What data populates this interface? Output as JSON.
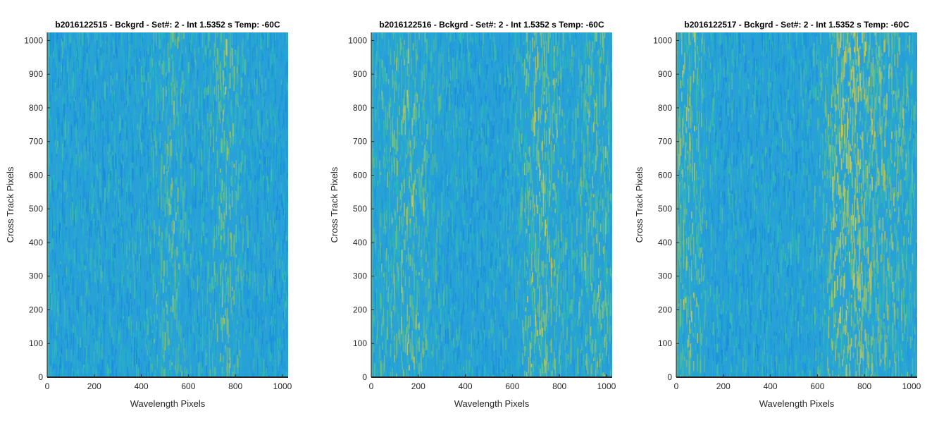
{
  "chart_data": [
    {
      "type": "heatmap",
      "title": "b2016122515 - Bckgrd - Set#: 2 - Int 1.5352 s Temp: -60C",
      "xlabel": "Wavelength Pixels",
      "ylabel": "Cross Track Pixels",
      "xlim": [
        0,
        1024
      ],
      "ylim": [
        0,
        1024
      ],
      "xticks": [
        0,
        200,
        400,
        600,
        800,
        1000
      ],
      "yticks": [
        0,
        100,
        200,
        300,
        400,
        500,
        600,
        700,
        800,
        900,
        1000
      ],
      "grid": false,
      "colormap": "parula",
      "base_color": "#2aa0d8",
      "yellow_bands": [
        {
          "x": 520,
          "w": 70,
          "s": 0.25
        },
        {
          "x": 760,
          "w": 70,
          "s": 0.3
        }
      ]
    },
    {
      "type": "heatmap",
      "title": "b2016122516 - Bckgrd - Set#: 2 - Int 1.5352 s Temp: -60C",
      "xlabel": "Wavelength Pixels",
      "ylabel": "Cross Track Pixels",
      "xlim": [
        0,
        1024
      ],
      "ylim": [
        0,
        1024
      ],
      "xticks": [
        0,
        200,
        400,
        600,
        800,
        1000
      ],
      "yticks": [
        0,
        100,
        200,
        300,
        400,
        500,
        600,
        700,
        800,
        900,
        1000
      ],
      "grid": false,
      "colormap": "parula",
      "base_color": "#2aa0d8",
      "yellow_bands": [
        {
          "x": 150,
          "w": 120,
          "s": 0.3
        },
        {
          "x": 720,
          "w": 90,
          "s": 0.4
        },
        {
          "x": 950,
          "w": 80,
          "s": 0.3
        }
      ]
    },
    {
      "type": "heatmap",
      "title": "b2016122517 - Bckgrd - Set#: 2 - Int 1.5352 s Temp: -60C",
      "xlabel": "Wavelength Pixels",
      "ylabel": "Cross Track Pixels",
      "xlim": [
        0,
        1024
      ],
      "ylim": [
        0,
        1024
      ],
      "xticks": [
        0,
        200,
        400,
        600,
        800,
        1000
      ],
      "yticks": [
        0,
        100,
        200,
        300,
        400,
        500,
        600,
        700,
        800,
        900,
        1000
      ],
      "grid": false,
      "colormap": "parula",
      "base_color": "#2aa0d8",
      "yellow_bands": [
        {
          "x": 40,
          "w": 80,
          "s": 0.35
        },
        {
          "x": 740,
          "w": 110,
          "s": 0.55
        },
        {
          "x": 920,
          "w": 90,
          "s": 0.3
        }
      ]
    }
  ]
}
